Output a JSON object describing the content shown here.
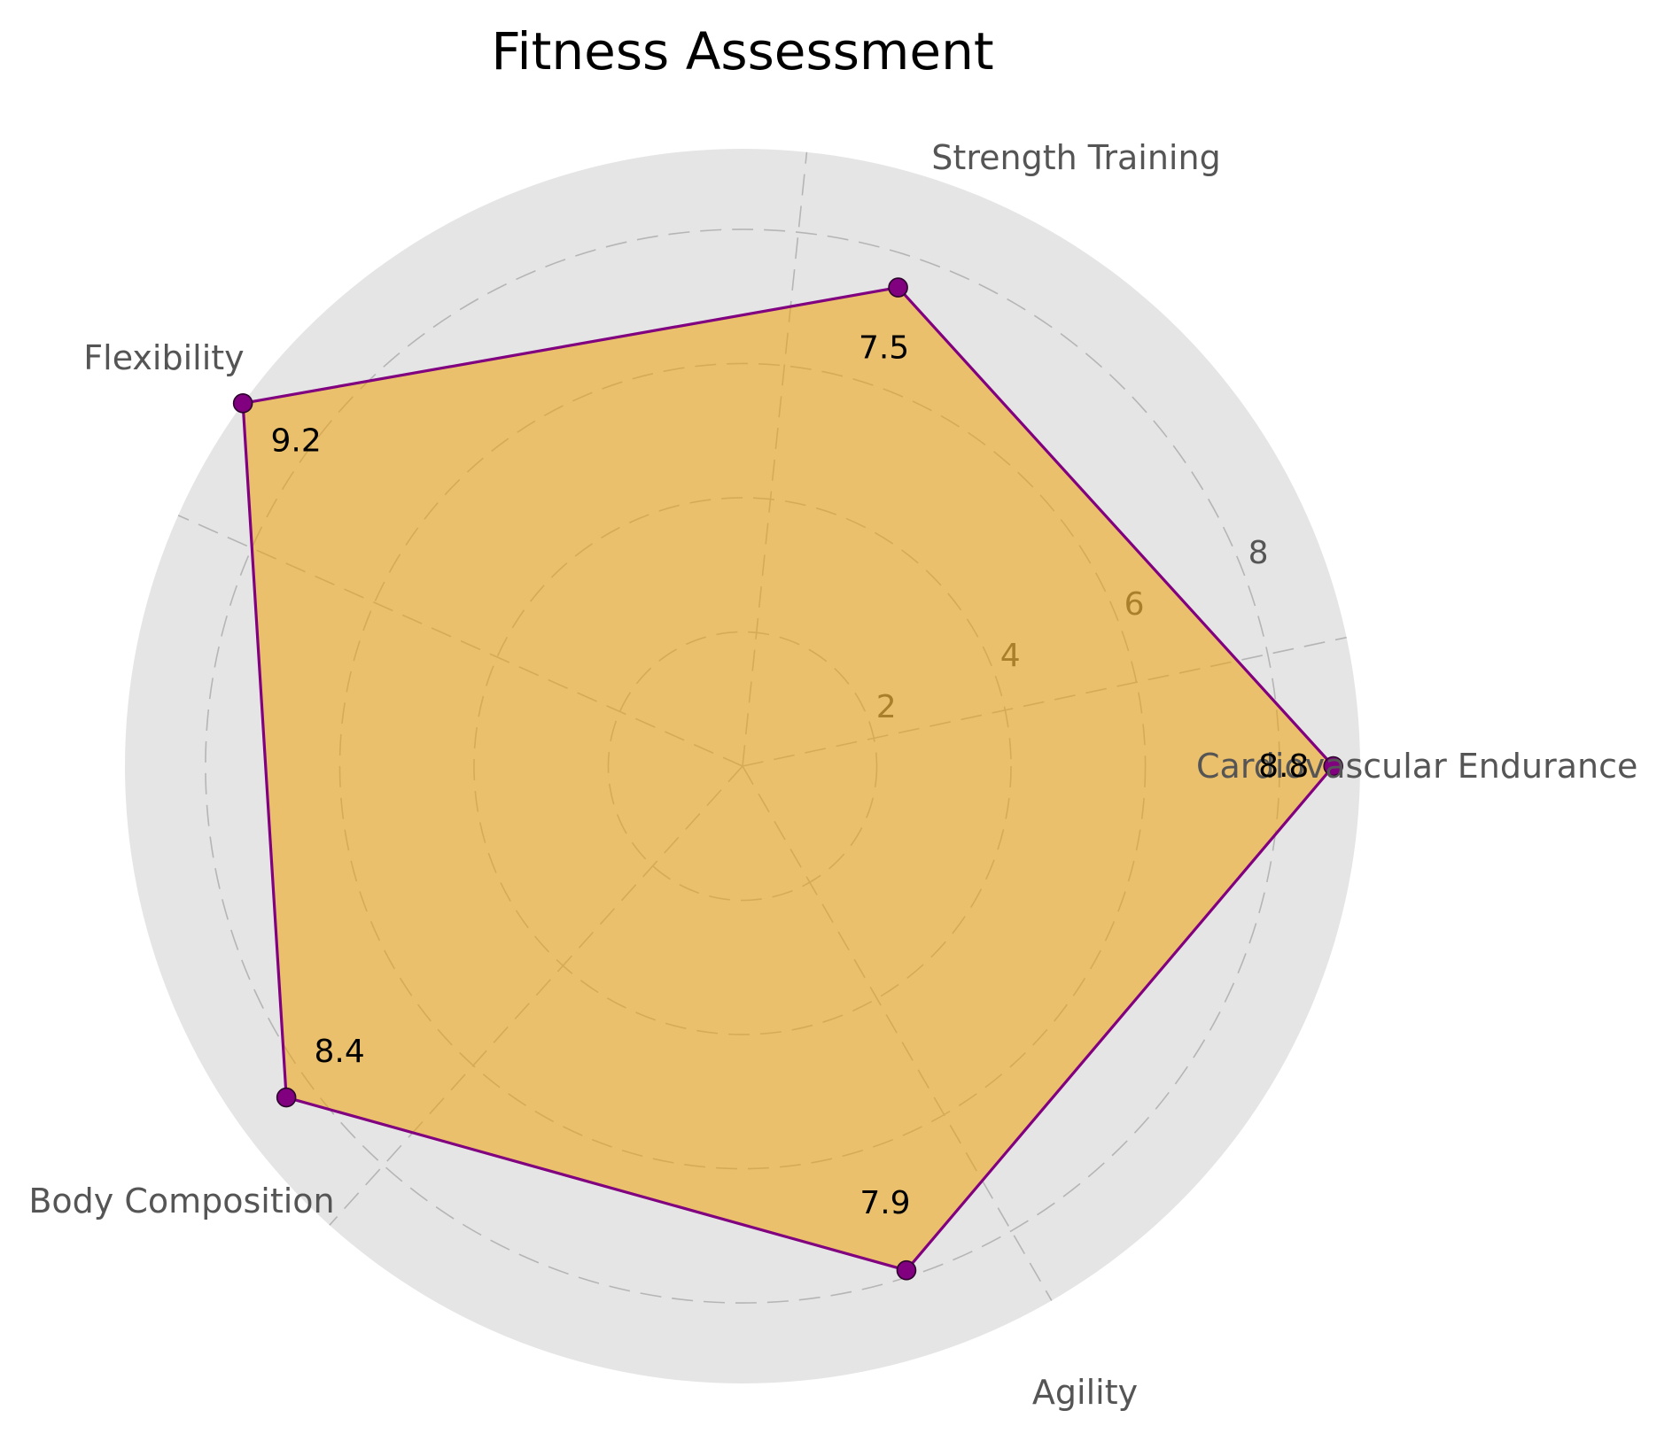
{
  "chart_data": {
    "type": "radar",
    "title": "Fitness Assessment",
    "categories": [
      "Cardiovascular Endurance",
      "Strength Training",
      "Flexibility",
      "Body Composition",
      "Agility"
    ],
    "values": [
      8.8,
      7.5,
      9.2,
      8.4,
      7.9
    ],
    "value_labels": [
      "8.8",
      "7.5",
      "9.2",
      "8.4",
      "7.9"
    ],
    "radial_ticks": [
      2,
      4,
      6,
      8
    ],
    "radial_tick_labels": [
      "2",
      "4",
      "6",
      "8"
    ],
    "rlim": [
      0,
      9.2
    ],
    "grid": true,
    "colors": {
      "fill": "#f0a30a",
      "fill_opacity": 0.55,
      "line": "#800080",
      "marker": "#800080",
      "marker_edge": "#2a002a",
      "background": "#e5e5e5"
    }
  }
}
